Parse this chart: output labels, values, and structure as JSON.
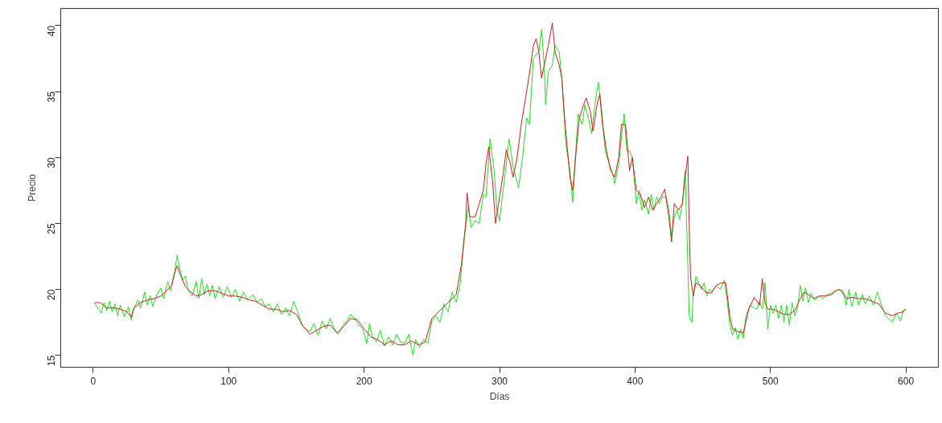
{
  "chart_data": {
    "type": "line",
    "xlabel": "Días",
    "ylabel": "Precio",
    "xlim": [
      -24,
      624
    ],
    "ylim": [
      14.1,
      41.3
    ],
    "xticks": [
      0,
      100,
      200,
      300,
      400,
      500,
      600
    ],
    "yticks": [
      15,
      20,
      25,
      30,
      35,
      40
    ],
    "grid": false,
    "line_style": "solid",
    "series": [
      {
        "color": "#22dd22",
        "x": [
          1,
          4,
          6,
          8,
          10,
          12,
          14,
          16,
          18,
          20,
          23,
          26,
          28,
          30,
          33,
          35,
          38,
          40,
          42,
          44,
          47,
          50,
          52,
          55,
          57,
          60,
          62,
          64,
          66,
          68,
          70,
          73,
          76,
          78,
          80,
          82,
          84,
          86,
          88,
          90,
          93,
          96,
          99,
          102,
          105,
          108,
          111,
          114,
          118,
          121,
          124,
          127,
          130,
          133,
          136,
          139,
          142,
          145,
          148,
          151,
          154,
          157,
          160,
          163,
          166,
          169,
          172,
          175,
          178,
          181,
          184,
          187,
          190,
          193,
          196,
          199,
          202,
          204,
          206,
          209,
          212,
          215,
          218,
          221,
          224,
          227,
          230,
          233,
          236,
          238,
          241,
          244,
          247,
          250,
          253,
          256,
          259,
          262,
          265,
          268,
          271,
          274,
          277,
          279,
          282,
          285,
          288,
          290,
          293,
          296,
          298,
          300,
          302,
          305,
          307,
          310,
          312,
          314,
          317,
          320,
          322,
          325,
          327,
          329,
          331,
          333,
          334,
          336,
          339,
          341,
          344,
          346,
          349,
          352,
          354,
          356,
          358,
          361,
          363,
          366,
          368,
          371,
          373,
          375,
          378,
          381,
          383,
          385,
          388,
          390,
          392,
          394,
          396,
          398,
          401,
          403,
          405,
          407,
          410,
          412,
          414,
          416,
          418,
          420,
          423,
          425,
          427,
          429,
          431,
          433,
          435,
          437,
          438,
          439,
          440,
          442,
          443,
          445,
          447,
          449,
          451,
          453,
          455,
          457,
          460,
          463,
          466,
          468,
          470,
          472,
          474,
          476,
          478,
          480,
          482,
          485,
          488,
          490,
          492,
          494,
          496,
          498,
          500,
          502,
          504,
          506,
          508,
          510,
          512,
          514,
          516,
          518,
          520,
          522,
          524,
          526,
          528,
          530,
          533,
          536,
          539,
          542,
          545,
          548,
          551,
          554,
          556,
          558,
          560,
          563,
          565,
          568,
          570,
          573,
          576,
          579,
          582,
          585,
          587,
          590,
          593,
          596,
          598,
          600
        ],
        "values": [
          19.0,
          18.5,
          18.2,
          19.0,
          18.4,
          19.1,
          18.3,
          18.9,
          18.0,
          18.8,
          17.9,
          18.7,
          17.7,
          18.5,
          19.2,
          18.6,
          19.8,
          18.8,
          19.5,
          18.7,
          19.6,
          20.1,
          19.3,
          20.6,
          19.9,
          21.3,
          22.6,
          21.5,
          20.7,
          21.0,
          20.0,
          19.5,
          20.6,
          19.3,
          20.8,
          19.6,
          20.4,
          19.5,
          20.3,
          19.3,
          20.2,
          19.4,
          20.2,
          19.4,
          20.0,
          19.1,
          19.8,
          19.2,
          19.6,
          19.0,
          19.3,
          18.7,
          18.9,
          18.3,
          18.9,
          18.1,
          18.6,
          18.0,
          19.1,
          18.3,
          17.3,
          17.0,
          16.8,
          17.4,
          16.5,
          17.6,
          17.0,
          17.8,
          17.0,
          16.6,
          17.2,
          17.6,
          18.1,
          17.8,
          17.3,
          17.0,
          15.9,
          17.4,
          16.5,
          16.0,
          16.9,
          15.7,
          16.4,
          15.8,
          16.6,
          16.0,
          15.9,
          16.6,
          15.0,
          16.2,
          15.6,
          16.2,
          15.9,
          17.6,
          18.0,
          17.5,
          18.9,
          18.3,
          19.8,
          19.0,
          20.5,
          24.0,
          26.3,
          24.7,
          25.2,
          25.0,
          27.2,
          27.0,
          31.4,
          29.0,
          26.0,
          25.2,
          27.0,
          29.5,
          31.4,
          29.3,
          28.5,
          27.7,
          30.0,
          33.0,
          32.5,
          37.5,
          37.8,
          38.0,
          39.7,
          37.0,
          34.0,
          36.5,
          37.0,
          38.5,
          38.0,
          36.0,
          31.0,
          29.0,
          26.6,
          30.0,
          33.3,
          32.5,
          34.0,
          32.8,
          31.8,
          34.5,
          35.7,
          34.0,
          30.5,
          29.5,
          29.0,
          28.0,
          29.5,
          31.5,
          33.3,
          30.5,
          30.5,
          30.0,
          26.5,
          27.5,
          26.0,
          26.8,
          25.7,
          27.2,
          26.0,
          27.0,
          26.5,
          27.0,
          27.0,
          26.0,
          24.0,
          25.5,
          26.0,
          25.3,
          26.5,
          29.0,
          25.5,
          22.0,
          18.0,
          17.5,
          19.5,
          21.0,
          20.5,
          20.0,
          20.5,
          19.5,
          20.0,
          19.8,
          20.3,
          20.0,
          20.7,
          19.2,
          17.3,
          16.5,
          17.1,
          16.2,
          17.0,
          16.3,
          18.0,
          18.8,
          18.6,
          18.5,
          19.1,
          18.5,
          20.5,
          17.0,
          18.8,
          18.2,
          18.8,
          17.8,
          18.8,
          17.5,
          18.8,
          17.3,
          19.0,
          18.0,
          18.6,
          20.3,
          19.1,
          20.1,
          19.0,
          19.7,
          19.2,
          19.5,
          19.3,
          19.6,
          19.7,
          19.9,
          20.0,
          19.6,
          18.8,
          20.0,
          18.7,
          19.8,
          18.8,
          19.6,
          18.9,
          19.5,
          18.8,
          19.8,
          18.8,
          18.0,
          17.8,
          17.5,
          18.2,
          17.6,
          18.4,
          18.5
        ]
      },
      {
        "color": "#c81e1e",
        "x": [
          1,
          5,
          10,
          15,
          20,
          25,
          28,
          30,
          35,
          40,
          45,
          50,
          55,
          58,
          60,
          62,
          64,
          68,
          72,
          76,
          80,
          85,
          90,
          95,
          100,
          105,
          110,
          115,
          120,
          125,
          130,
          135,
          140,
          145,
          150,
          155,
          160,
          165,
          170,
          175,
          180,
          185,
          190,
          195,
          200,
          205,
          210,
          215,
          220,
          225,
          230,
          235,
          240,
          245,
          250,
          255,
          260,
          265,
          268,
          272,
          275,
          276,
          278,
          282,
          285,
          288,
          290,
          292,
          295,
          297,
          300,
          303,
          305,
          308,
          310,
          313,
          316,
          320,
          323,
          325,
          327,
          329,
          331,
          333,
          336,
          339,
          341,
          344,
          346,
          348,
          352,
          354,
          357,
          359,
          362,
          364,
          367,
          369,
          372,
          374,
          376,
          379,
          382,
          385,
          388,
          390,
          393,
          396,
          398,
          401,
          404,
          407,
          410,
          413,
          416,
          419,
          422,
          425,
          427,
          429,
          432,
          435,
          437,
          439,
          440,
          441,
          443,
          445,
          448,
          452,
          456,
          460,
          464,
          467,
          470,
          472,
          476,
          480,
          484,
          488,
          492,
          494,
          496,
          498,
          502,
          506,
          510,
          514,
          518,
          522,
          525,
          528,
          532,
          536,
          540,
          545,
          550,
          553,
          556,
          560,
          565,
          570,
          575,
          580,
          585,
          590,
          594,
          598,
          600
        ],
        "values": [
          19.0,
          19.0,
          18.6,
          18.6,
          18.5,
          18.3,
          17.9,
          18.6,
          19.0,
          19.2,
          19.3,
          19.5,
          20.0,
          20.3,
          21.2,
          21.8,
          21.2,
          20.2,
          19.8,
          19.5,
          19.6,
          19.9,
          19.9,
          19.7,
          19.5,
          19.5,
          19.4,
          19.2,
          19.1,
          18.8,
          18.5,
          18.5,
          18.3,
          18.4,
          18.1,
          17.2,
          16.6,
          16.9,
          17.2,
          17.3,
          16.7,
          17.2,
          17.8,
          17.7,
          17.0,
          16.4,
          16.2,
          15.8,
          16.1,
          15.8,
          15.8,
          16.1,
          15.8,
          16.0,
          17.8,
          18.3,
          18.8,
          19.3,
          19.6,
          22.0,
          25.0,
          27.3,
          25.5,
          25.5,
          26.5,
          27.5,
          29.5,
          30.8,
          28.0,
          25.0,
          27.0,
          29.0,
          30.6,
          29.5,
          28.5,
          30.0,
          32.5,
          35.0,
          37.0,
          38.5,
          39.0,
          38.0,
          36.0,
          37.0,
          38.5,
          40.2,
          38.0,
          37.0,
          36.0,
          33.0,
          28.5,
          27.5,
          31.0,
          33.0,
          34.0,
          34.5,
          33.5,
          32.0,
          34.0,
          34.8,
          32.5,
          30.5,
          29.0,
          28.5,
          30.0,
          32.5,
          32.5,
          29.0,
          30.0,
          27.5,
          27.2,
          26.2,
          27.0,
          26.0,
          26.5,
          27.0,
          27.6,
          25.5,
          23.6,
          26.5,
          26.0,
          26.5,
          28.5,
          30.1,
          25.0,
          21.0,
          19.5,
          20.5,
          20.3,
          19.8,
          19.7,
          20.3,
          20.5,
          20.5,
          18.0,
          17.0,
          16.8,
          16.7,
          18.5,
          19.4,
          18.8,
          20.8,
          19.0,
          18.5,
          18.5,
          18.3,
          18.1,
          18.1,
          18.4,
          19.3,
          19.8,
          19.6,
          19.3,
          19.5,
          19.5,
          19.6,
          20.0,
          19.9,
          19.3,
          19.4,
          19.3,
          19.3,
          19.1,
          18.9,
          18.2,
          18.0,
          18.2,
          18.3,
          18.5
        ]
      }
    ]
  }
}
